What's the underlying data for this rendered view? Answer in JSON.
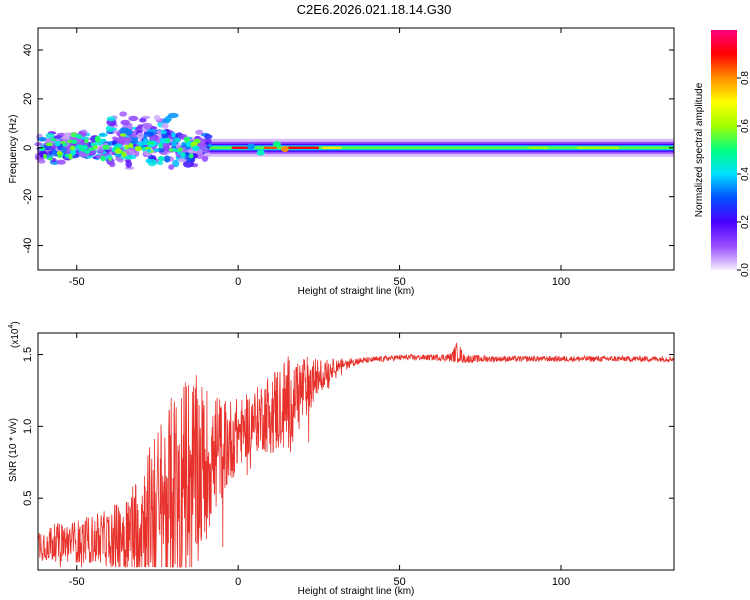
{
  "title": "C2E6.2026.021.18.14.G30",
  "chart_data": [
    {
      "type": "heatmap",
      "xlabel": "Height of straight line (km)",
      "ylabel": "Frequency (Hz)",
      "xlim": [
        -62,
        135
      ],
      "ylim": [
        -50,
        49
      ],
      "xticks": [
        -50,
        0,
        50,
        100
      ],
      "yticks": [
        -40,
        -20,
        0,
        20,
        40
      ],
      "colorbar": {
        "label": "Normalized spectral amplitude",
        "range": [
          0,
          1
        ],
        "ticks": [
          "0.0",
          "0.2",
          "0.4",
          "0.6",
          "0.8"
        ],
        "tick_values": [
          0,
          0.2,
          0.4,
          0.6,
          0.8
        ],
        "colors": [
          "#f4eefc",
          "#9a4cff",
          "#4a00ff",
          "#0050ff",
          "#00e0ff",
          "#00ff80",
          "#a0ff00",
          "#ffff00",
          "#ff9000",
          "#ff0000",
          "#ff0080"
        ]
      },
      "band": {
        "center_hz": 0,
        "noisy_region_km": [
          -62,
          -12
        ],
        "stable_region_km": [
          -12,
          135
        ]
      }
    },
    {
      "type": "line",
      "xlabel": "Height of straight line (km)",
      "ylabel": "SNR (10 * v/v)",
      "scale_label": "(x10",
      "scale_exp": "4",
      "scale_close": ")",
      "xlim": [
        -62,
        135
      ],
      "ylim": [
        0,
        1.65
      ],
      "xticks": [
        -50,
        0,
        50,
        100
      ],
      "yticks": [
        "0.5",
        "1.0",
        "1.5"
      ],
      "ytick_values": [
        0.5,
        1.0,
        1.5
      ],
      "color": "#e8302a",
      "envelope": {
        "x": [
          -62,
          -50,
          -40,
          -35,
          -30,
          -25,
          -20,
          -15,
          -10,
          -5,
          0,
          5,
          10,
          15,
          20,
          25,
          30,
          35,
          40,
          50,
          60,
          66,
          68,
          70,
          80,
          100,
          120,
          135
        ],
        "base": [
          0.18,
          0.2,
          0.22,
          0.25,
          0.35,
          0.45,
          0.55,
          0.65,
          0.75,
          0.85,
          0.95,
          1.05,
          1.1,
          1.15,
          1.25,
          1.35,
          1.42,
          1.45,
          1.46,
          1.48,
          1.48,
          1.48,
          1.52,
          1.47,
          1.47,
          1.47,
          1.47,
          1.47
        ],
        "amp": [
          0.12,
          0.15,
          0.2,
          0.3,
          0.4,
          0.55,
          0.7,
          0.75,
          0.55,
          0.35,
          0.25,
          0.2,
          0.3,
          0.35,
          0.25,
          0.12,
          0.05,
          0.03,
          0.02,
          0.02,
          0.02,
          0.03,
          0.08,
          0.03,
          0.02,
          0.02,
          0.02,
          0.02
        ]
      }
    }
  ]
}
